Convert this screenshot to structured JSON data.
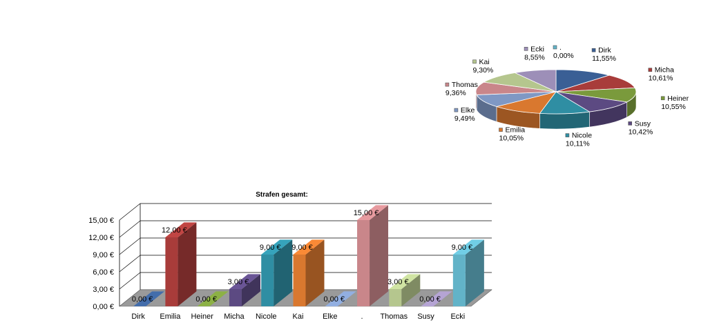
{
  "chart_data": [
    {
      "type": "pie",
      "title": "",
      "slices": [
        {
          "label": "Dirk",
          "value_label": "11,55%",
          "value": 11.55,
          "color": "#3a5f95"
        },
        {
          "label": "Micha",
          "value_label": "10,61%",
          "value": 10.61,
          "color": "#a83c3a"
        },
        {
          "label": "Heiner",
          "value_label": "10,55%",
          "value": 10.55,
          "color": "#7a9a3c"
        },
        {
          "label": "Susy",
          "value_label": "10,42%",
          "value": 10.42,
          "color": "#5c4a82"
        },
        {
          "label": "Nicole",
          "value_label": "10,11%",
          "value": 10.11,
          "color": "#2f8ea3"
        },
        {
          "label": "Emilia",
          "value_label": "10,05%",
          "value": 10.05,
          "color": "#d9782f"
        },
        {
          "label": "Elke",
          "value_label": "9,49%",
          "value": 9.49,
          "color": "#7f98c4"
        },
        {
          "label": "Thomas",
          "value_label": "9,36%",
          "value": 9.36,
          "color": "#c9868a"
        },
        {
          "label": "Kai",
          "value_label": "9,30%",
          "value": 9.3,
          "color": "#b5c68e"
        },
        {
          "label": "Ecki",
          "value_label": "8,55%",
          "value": 8.55,
          "color": "#9d8fb8"
        },
        {
          "label": ".",
          "value_label": "0,00%",
          "value": 0.0,
          "color": "#62b3c8"
        }
      ]
    },
    {
      "type": "bar",
      "title": "Strafen gesamt:",
      "categories": [
        "Dirk",
        "Emilia",
        "Heiner",
        "Micha",
        "Nicole",
        "Kai",
        "Elke",
        ".",
        "Thomas",
        "Susy",
        "Ecki"
      ],
      "values": [
        0,
        12,
        0,
        3,
        9,
        9,
        0,
        15,
        3,
        0,
        9
      ],
      "value_labels": [
        "0,00 €",
        "12,00 €",
        "0,00 €",
        "3,00 €",
        "9,00 €",
        "9,00 €",
        "0,00 €",
        "15,00 €",
        "3,00 €",
        "0,00 €",
        "9,00 €"
      ],
      "colors": [
        "#3a5f95",
        "#a83c3a",
        "#7a9a3c",
        "#5c4a82",
        "#2f8ea3",
        "#d9782f",
        "#7f98c4",
        "#c9868a",
        "#b5c68e",
        "#9d8fb8",
        "#62b3c8"
      ],
      "yticks": [
        0,
        3,
        6,
        9,
        12,
        15
      ],
      "ytick_labels": [
        "0,00 €",
        "3,00 €",
        "6,00 €",
        "9,00 €",
        "12,00 €",
        "15,00 €"
      ],
      "ylim": [
        0,
        15
      ],
      "grid": true
    }
  ]
}
